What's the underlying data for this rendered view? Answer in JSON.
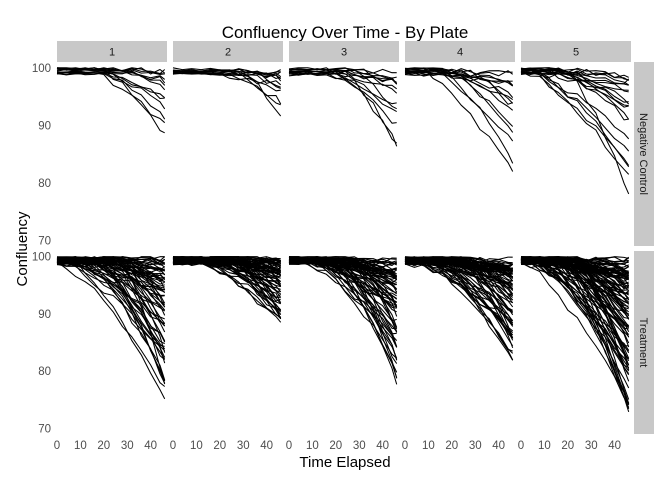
{
  "chart_data": {
    "type": "line",
    "title": "Confluency Over Time - By Plate",
    "xlabel": "Time Elapsed",
    "ylabel": "Confluency",
    "facet_columns": [
      "1",
      "2",
      "3",
      "4",
      "5"
    ],
    "facet_rows": [
      "Negative Control",
      "Treatment"
    ],
    "xlim": [
      0,
      47
    ],
    "ylim": [
      69,
      101
    ],
    "x_ticks": [
      0,
      10,
      20,
      30,
      40
    ],
    "y_ticks": [
      70,
      80,
      90,
      100
    ],
    "grid": false,
    "legend": "none",
    "time_points": [
      0,
      4,
      8,
      12,
      16,
      20,
      24,
      28,
      32,
      36,
      40,
      44,
      46
    ],
    "panels": [
      {
        "plate": "1",
        "group": "Negative Control",
        "n_series": 14,
        "final_range": [
          86,
          99.8
        ],
        "onset_range": [
          12,
          30
        ]
      },
      {
        "plate": "2",
        "group": "Negative Control",
        "n_series": 14,
        "final_range": [
          91,
          99.8
        ],
        "onset_range": [
          18,
          32
        ]
      },
      {
        "plate": "3",
        "group": "Negative Control",
        "n_series": 14,
        "final_range": [
          84,
          99.8
        ],
        "onset_range": [
          14,
          30
        ]
      },
      {
        "plate": "4",
        "group": "Negative Control",
        "n_series": 16,
        "final_range": [
          80,
          99.5
        ],
        "onset_range": [
          5,
          28
        ]
      },
      {
        "plate": "5",
        "group": "Negative Control",
        "n_series": 20,
        "final_range": [
          76,
          99
        ],
        "onset_range": [
          0,
          20
        ]
      },
      {
        "plate": "1",
        "group": "Treatment",
        "n_series": 70,
        "final_range": [
          72,
          99.8
        ],
        "onset_range": [
          0,
          30
        ]
      },
      {
        "plate": "2",
        "group": "Treatment",
        "n_series": 70,
        "final_range": [
          86.5,
          99.8
        ],
        "onset_range": [
          6,
          32
        ]
      },
      {
        "plate": "3",
        "group": "Treatment",
        "n_series": 70,
        "final_range": [
          75.5,
          99.8
        ],
        "onset_range": [
          4,
          30
        ]
      },
      {
        "plate": "4",
        "group": "Treatment",
        "n_series": 80,
        "final_range": [
          79.5,
          99.8
        ],
        "onset_range": [
          2,
          30
        ]
      },
      {
        "plate": "5",
        "group": "Treatment",
        "n_series": 100,
        "final_range": [
          69.5,
          99.8
        ],
        "onset_range": [
          0,
          26
        ]
      }
    ]
  }
}
